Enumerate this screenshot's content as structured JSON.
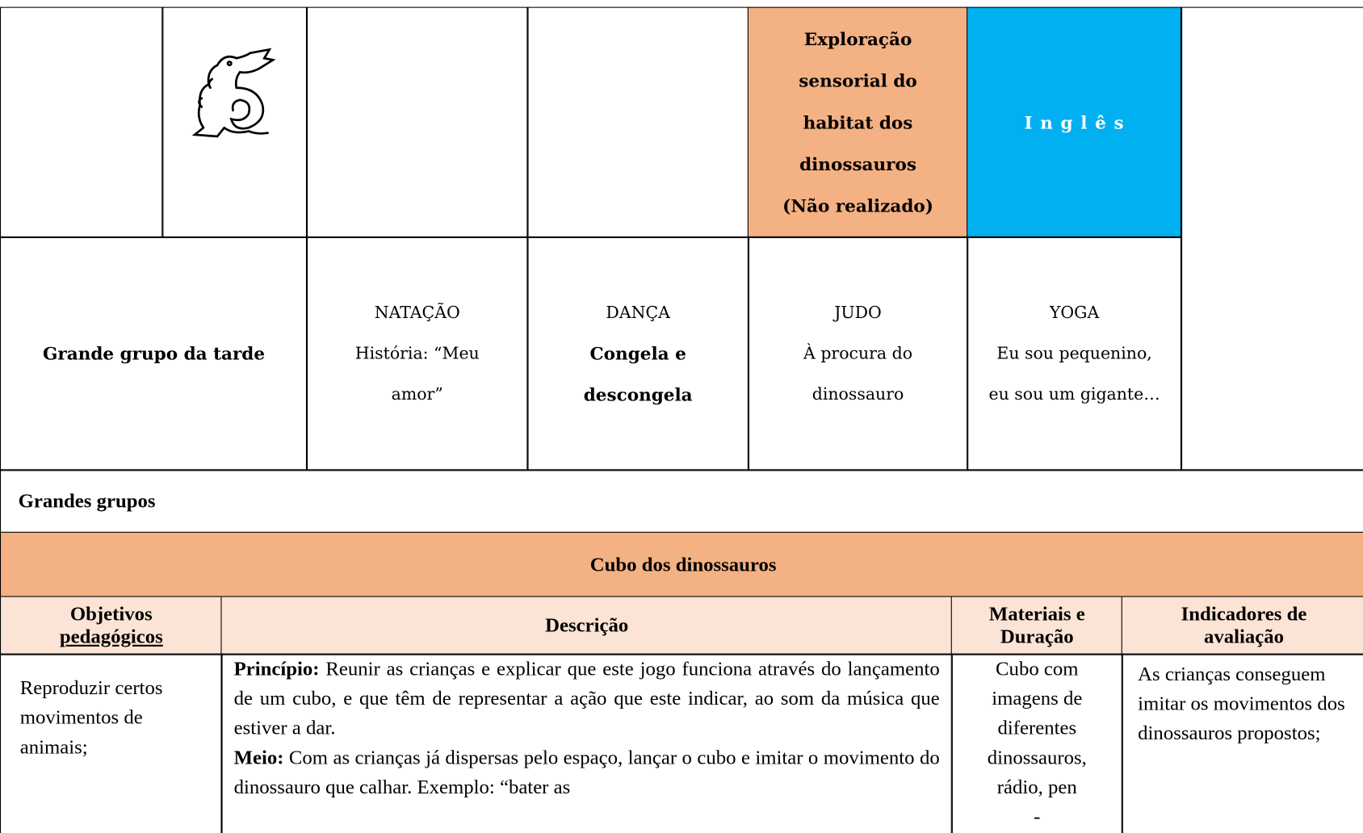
{
  "schedule": {
    "row1": {
      "exploration": [
        "Exploração",
        "sensorial do",
        "habitat dos",
        "dinossauros",
        "(Não realizado)"
      ],
      "english": "I n g l ê s"
    },
    "row2": {
      "label": "Grande grupo da tarde",
      "cells": [
        {
          "title": "NATAÇÃO",
          "lines": [
            "História: “Meu",
            "amor”"
          ]
        },
        {
          "title": "DANÇA",
          "lines": [
            "Congela e",
            "descongela"
          ]
        },
        {
          "title": "JUDO",
          "lines": [
            "À procura do",
            "dinossauro"
          ]
        },
        {
          "title": "YOGA",
          "lines": [
            "Eu sou pequenino,",
            "eu sou um gigante…"
          ]
        }
      ]
    }
  },
  "section": {
    "title": "Grandes grupos",
    "activity": "Cubo dos dinossauros",
    "headers": [
      [
        "Objetivos",
        "pedagógicos"
      ],
      [
        "Descrição"
      ],
      [
        "Materiais e",
        "Duração"
      ],
      [
        "Indicadores de",
        "avaliação"
      ]
    ],
    "objectives": "Reproduzir certos movimentos de animais;",
    "description": [
      {
        "label": "Princípio:",
        "text": "Reunir as crianças e explicar que este jogo funciona através do lançamento de um cubo, e que têm de representar a ação que este indicar, ao som da música que estiver a dar."
      },
      {
        "label": "Meio:",
        "text": "Com as crianças já dispersas pelo espaço, lançar o cubo e imitar o movimento do dinossauro que calhar. Exemplo: “bater as"
      }
    ],
    "materials": [
      "Cubo com",
      "imagens de",
      "diferentes",
      "dinossauros,",
      "rádio, pen",
      "-"
    ],
    "indicators": "As crianças conseguem imitar os movimentos dos dinossauros propostos;"
  }
}
